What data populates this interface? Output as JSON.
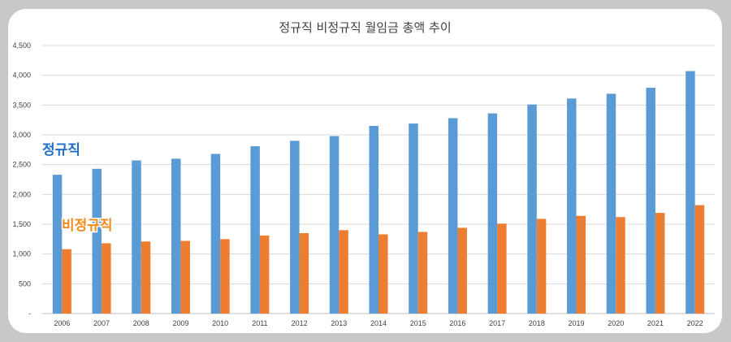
{
  "chart_data": {
    "type": "bar",
    "title": "정규직 비정규직 월임금 총액 추이",
    "xlabel": "",
    "ylabel": "",
    "ylim": [
      0,
      4500
    ],
    "yticks": [
      "-",
      "500",
      "1,000",
      "1,500",
      "2,000",
      "2,500",
      "3,000",
      "3,500",
      "4,000",
      "4,500"
    ],
    "grid": true,
    "legend": "none",
    "categories": [
      "2006",
      "2007",
      "2008",
      "2009",
      "2010",
      "2011",
      "2012",
      "2013",
      "2014",
      "2015",
      "2016",
      "2017",
      "2018",
      "2019",
      "2020",
      "2021",
      "2022"
    ],
    "series": [
      {
        "name": "정규직",
        "color": "#5b9bd5",
        "label_color": "#1f6fc5",
        "values": [
          2330,
          2430,
          2570,
          2600,
          2680,
          2810,
          2900,
          2980,
          3150,
          3190,
          3280,
          3360,
          3510,
          3610,
          3690,
          3790,
          4070
        ]
      },
      {
        "name": "비정규직",
        "color": "#ed7d31",
        "label_color": "#f28a1a",
        "values": [
          1080,
          1180,
          1210,
          1220,
          1250,
          1310,
          1350,
          1400,
          1330,
          1370,
          1440,
          1510,
          1590,
          1640,
          1620,
          1690,
          1820
        ]
      }
    ]
  }
}
